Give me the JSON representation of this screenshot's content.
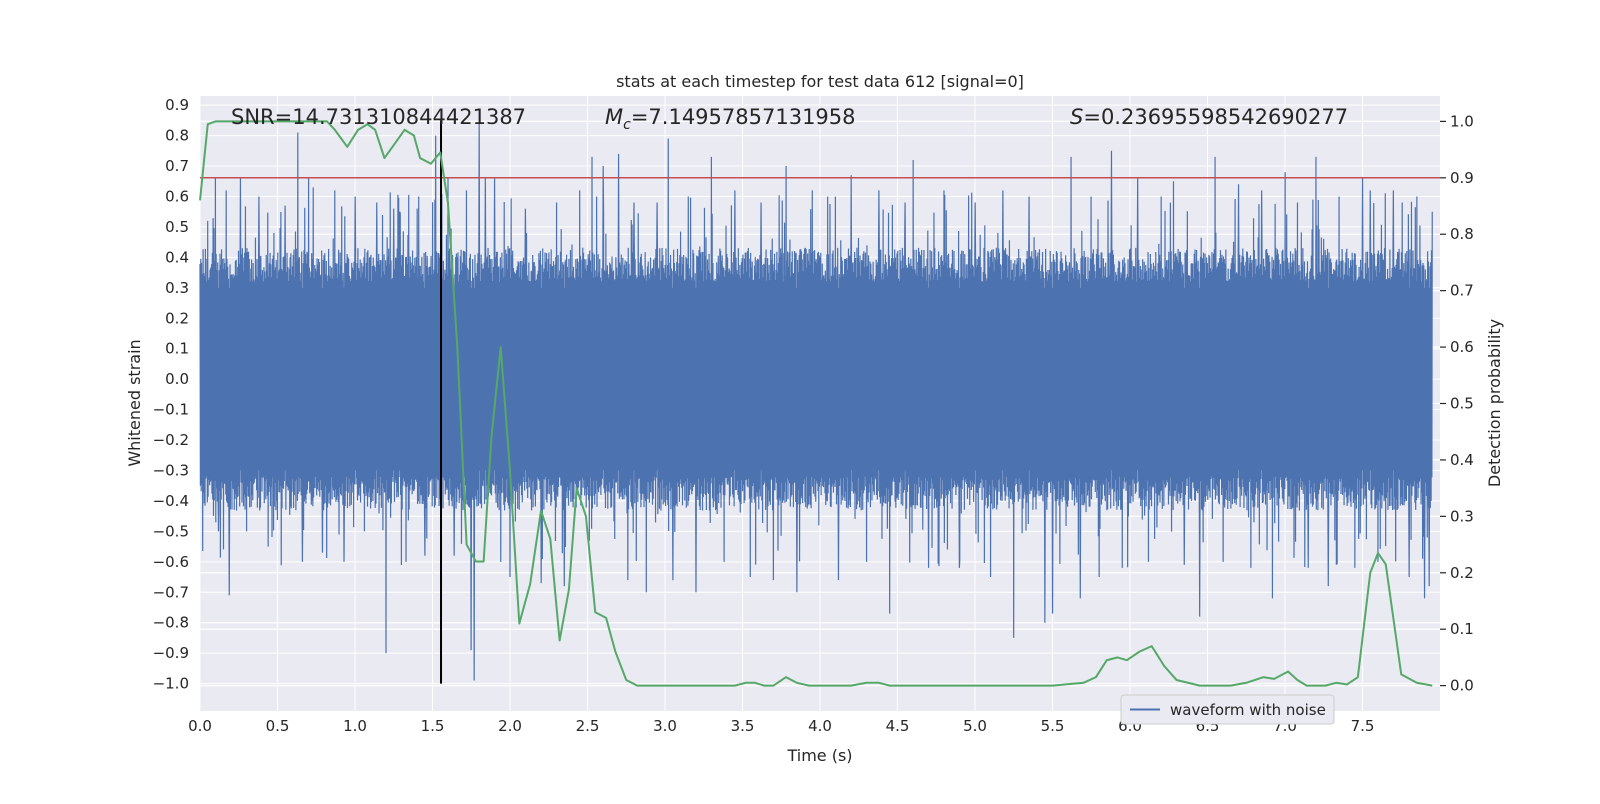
{
  "chart_data": {
    "type": "line",
    "title": "stats at each timestep for test data 612 [signal=0]",
    "xlabel": "Time (s)",
    "ylabel": "Whitened strain",
    "ylabel_right": "Detection probability",
    "xlim": [
      0.0,
      8.0
    ],
    "ylim": [
      -1.09,
      0.93
    ],
    "ylim_right": [
      -0.045,
      1.045
    ],
    "x_ticks": [
      0.0,
      0.5,
      1.0,
      1.5,
      2.0,
      2.5,
      3.0,
      3.5,
      4.0,
      4.5,
      5.0,
      5.5,
      6.0,
      6.5,
      7.0,
      7.5
    ],
    "x_tick_labels": [
      "0.0",
      "0.5",
      "1.0",
      "1.5",
      "2.0",
      "2.5",
      "3.0",
      "3.5",
      "4.0",
      "4.5",
      "5.0",
      "5.5",
      "6.0",
      "6.5",
      "7.0",
      "7.5"
    ],
    "y_ticks": [
      0.9,
      0.8,
      0.7,
      0.6,
      0.5,
      0.4,
      0.3,
      0.2,
      0.1,
      0.0,
      -0.1,
      -0.2,
      -0.3,
      -0.4,
      -0.5,
      -0.6,
      -0.7,
      -0.8,
      -0.9,
      -1.0
    ],
    "y_tick_labels": [
      "0.9",
      "0.8",
      "0.7",
      "0.6",
      "0.5",
      "0.4",
      "0.3",
      "0.2",
      "0.1",
      "0.0",
      "−0.1",
      "−0.2",
      "−0.3",
      "−0.4",
      "−0.5",
      "−0.6",
      "−0.7",
      "−0.8",
      "−0.9",
      "−1.0"
    ],
    "y_right_ticks": [
      1.0,
      0.9,
      0.8,
      0.7,
      0.6,
      0.5,
      0.4,
      0.3,
      0.2,
      0.1,
      0.0
    ],
    "y_right_tick_labels": [
      "1.0",
      "0.9",
      "0.8",
      "0.7",
      "0.6",
      "0.5",
      "0.4",
      "0.3",
      "0.2",
      "0.1",
      "0.0"
    ],
    "grid": true,
    "legend_position": "lower right",
    "annotations": {
      "snr": "SNR=14.731310844421387",
      "mc_symbol": "M",
      "mc_sub": "c",
      "mc_value": "=7.14957857131958",
      "s_symbol": "S",
      "s_value": "=0.23695598542690277"
    },
    "threshold_line": {
      "value": 0.9,
      "axis": "right",
      "color": "#c44e52"
    },
    "marker_line": {
      "x": 1.555,
      "y_from": -1.0,
      "y_to": 0.85,
      "color": "#000000"
    },
    "series": [
      {
        "name": "waveform with noise",
        "kind": "noise_waveform",
        "color": "#4c72b0",
        "band": 0.3,
        "spikes": [
          [
            0.05,
            0.52
          ],
          [
            0.1,
            0.66
          ],
          [
            0.12,
            -0.5
          ],
          [
            0.17,
            0.62
          ],
          [
            0.19,
            -0.71
          ],
          [
            0.26,
            0.66
          ],
          [
            0.3,
            -0.5
          ],
          [
            0.38,
            0.6
          ],
          [
            0.44,
            -0.55
          ],
          [
            0.55,
            0.57
          ],
          [
            0.63,
            0.81
          ],
          [
            0.66,
            -0.6
          ],
          [
            0.7,
            0.66
          ],
          [
            0.73,
            0.63
          ],
          [
            0.79,
            -0.57
          ],
          [
            0.87,
            0.62
          ],
          [
            0.93,
            -0.6
          ],
          [
            1.0,
            0.6
          ],
          [
            1.06,
            -0.5
          ],
          [
            1.14,
            0.58
          ],
          [
            1.2,
            -0.9
          ],
          [
            1.25,
            0.56
          ],
          [
            1.29,
            0.55
          ],
          [
            1.33,
            -0.6
          ],
          [
            1.4,
            0.56
          ],
          [
            1.45,
            -0.58
          ],
          [
            1.52,
            0.8
          ],
          [
            1.6,
            0.66
          ],
          [
            1.64,
            -0.58
          ],
          [
            1.72,
            0.62
          ],
          [
            1.75,
            -0.89
          ],
          [
            1.77,
            -0.99
          ],
          [
            1.8,
            0.84
          ],
          [
            1.84,
            0.66
          ],
          [
            1.9,
            0.66
          ],
          [
            1.94,
            -0.6
          ],
          [
            2.0,
            -0.65
          ],
          [
            2.1,
            0.56
          ],
          [
            2.2,
            -0.67
          ],
          [
            2.3,
            0.58
          ],
          [
            2.35,
            -0.68
          ],
          [
            2.45,
            0.62
          ],
          [
            2.53,
            0.73
          ],
          [
            2.56,
            0.6
          ],
          [
            2.6,
            0.7
          ],
          [
            2.7,
            0.74
          ],
          [
            2.76,
            -0.66
          ],
          [
            2.8,
            0.58
          ],
          [
            2.88,
            -0.7
          ],
          [
            2.95,
            0.58
          ],
          [
            3.02,
            0.79
          ],
          [
            3.05,
            -0.66
          ],
          [
            3.15,
            0.6
          ],
          [
            3.2,
            -0.7
          ],
          [
            3.3,
            0.73
          ],
          [
            3.38,
            -0.6
          ],
          [
            3.45,
            0.62
          ],
          [
            3.55,
            -0.65
          ],
          [
            3.62,
            0.58
          ],
          [
            3.7,
            -0.66
          ],
          [
            3.78,
            0.7
          ],
          [
            3.85,
            -0.7
          ],
          [
            3.95,
            0.62
          ],
          [
            4.05,
            0.6
          ],
          [
            4.12,
            -0.66
          ],
          [
            4.2,
            0.67
          ],
          [
            4.3,
            -0.6
          ],
          [
            4.38,
            0.62
          ],
          [
            4.45,
            -0.77
          ],
          [
            4.55,
            0.58
          ],
          [
            4.6,
            0.72
          ],
          [
            4.7,
            -0.62
          ],
          [
            4.8,
            0.62
          ],
          [
            4.9,
            -0.62
          ],
          [
            5.0,
            0.58
          ],
          [
            5.1,
            -0.65
          ],
          [
            5.18,
            0.62
          ],
          [
            5.25,
            -0.85
          ],
          [
            5.35,
            0.6
          ],
          [
            5.45,
            -0.8
          ],
          [
            5.5,
            -0.77
          ],
          [
            5.62,
            0.73
          ],
          [
            5.68,
            -0.72
          ],
          [
            5.75,
            0.6
          ],
          [
            5.8,
            -0.65
          ],
          [
            5.88,
            0.75
          ],
          [
            5.95,
            -0.62
          ],
          [
            6.05,
            0.66
          ],
          [
            6.12,
            -0.6
          ],
          [
            6.2,
            0.6
          ],
          [
            6.28,
            0.65
          ],
          [
            6.35,
            -0.61
          ],
          [
            6.45,
            -0.78
          ],
          [
            6.55,
            0.73
          ],
          [
            6.6,
            -0.6
          ],
          [
            6.7,
            0.64
          ],
          [
            6.78,
            -0.62
          ],
          [
            6.85,
            0.62
          ],
          [
            6.92,
            -0.72
          ],
          [
            7.0,
            0.68
          ],
          [
            7.08,
            0.58
          ],
          [
            7.15,
            -0.62
          ],
          [
            7.2,
            0.73
          ],
          [
            7.28,
            -0.68
          ],
          [
            7.35,
            0.6
          ],
          [
            7.45,
            -0.62
          ],
          [
            7.5,
            0.66
          ],
          [
            7.55,
            0.62
          ],
          [
            7.6,
            -0.6
          ],
          [
            7.7,
            0.62
          ],
          [
            7.8,
            -0.65
          ],
          [
            7.85,
            0.6
          ],
          [
            7.9,
            -0.72
          ],
          [
            7.93,
            -0.68
          ],
          [
            7.95,
            0.55
          ]
        ]
      },
      {
        "name": "",
        "kind": "probability",
        "axis": "right",
        "color": "#55a868",
        "x": [
          0.0,
          0.05,
          0.1,
          0.2,
          0.4,
          0.6,
          0.82,
          0.87,
          0.95,
          1.02,
          1.08,
          1.13,
          1.19,
          1.25,
          1.32,
          1.38,
          1.42,
          1.49,
          1.55,
          1.6,
          1.66,
          1.72,
          1.78,
          1.83,
          1.88,
          1.94,
          2.0,
          2.06,
          2.13,
          2.2,
          2.26,
          2.32,
          2.38,
          2.43,
          2.49,
          2.55,
          2.62,
          2.68,
          2.75,
          2.82,
          3.0,
          3.2,
          3.45,
          3.52,
          3.58,
          3.64,
          3.7,
          3.78,
          3.85,
          3.93,
          4.05,
          4.2,
          4.3,
          4.38,
          4.45,
          4.7,
          5.0,
          5.5,
          5.7,
          5.78,
          5.85,
          5.92,
          5.98,
          6.06,
          6.14,
          6.22,
          6.3,
          6.45,
          6.65,
          6.75,
          6.86,
          6.93,
          7.02,
          7.08,
          7.14,
          7.26,
          7.33,
          7.4,
          7.47,
          7.55,
          7.6,
          7.65,
          7.75,
          7.85,
          7.95
        ],
        "y": [
          0.86,
          0.995,
          1.0,
          1.0,
          1.0,
          1.0,
          1.0,
          0.985,
          0.955,
          0.985,
          0.995,
          0.985,
          0.935,
          0.958,
          0.985,
          0.975,
          0.935,
          0.925,
          0.945,
          0.855,
          0.6,
          0.25,
          0.22,
          0.22,
          0.44,
          0.6,
          0.38,
          0.11,
          0.18,
          0.31,
          0.26,
          0.08,
          0.17,
          0.35,
          0.3,
          0.13,
          0.12,
          0.06,
          0.01,
          0.0,
          0.0,
          0.0,
          0.0,
          0.005,
          0.005,
          0.0,
          0.0,
          0.015,
          0.005,
          0.0,
          0.0,
          0.0,
          0.005,
          0.005,
          0.0,
          0.0,
          0.0,
          0.0,
          0.005,
          0.015,
          0.045,
          0.05,
          0.045,
          0.06,
          0.07,
          0.035,
          0.01,
          0.0,
          0.0,
          0.005,
          0.015,
          0.012,
          0.025,
          0.01,
          0.0,
          0.0,
          0.005,
          0.002,
          0.015,
          0.2,
          0.235,
          0.215,
          0.02,
          0.005,
          0.0
        ]
      }
    ]
  }
}
